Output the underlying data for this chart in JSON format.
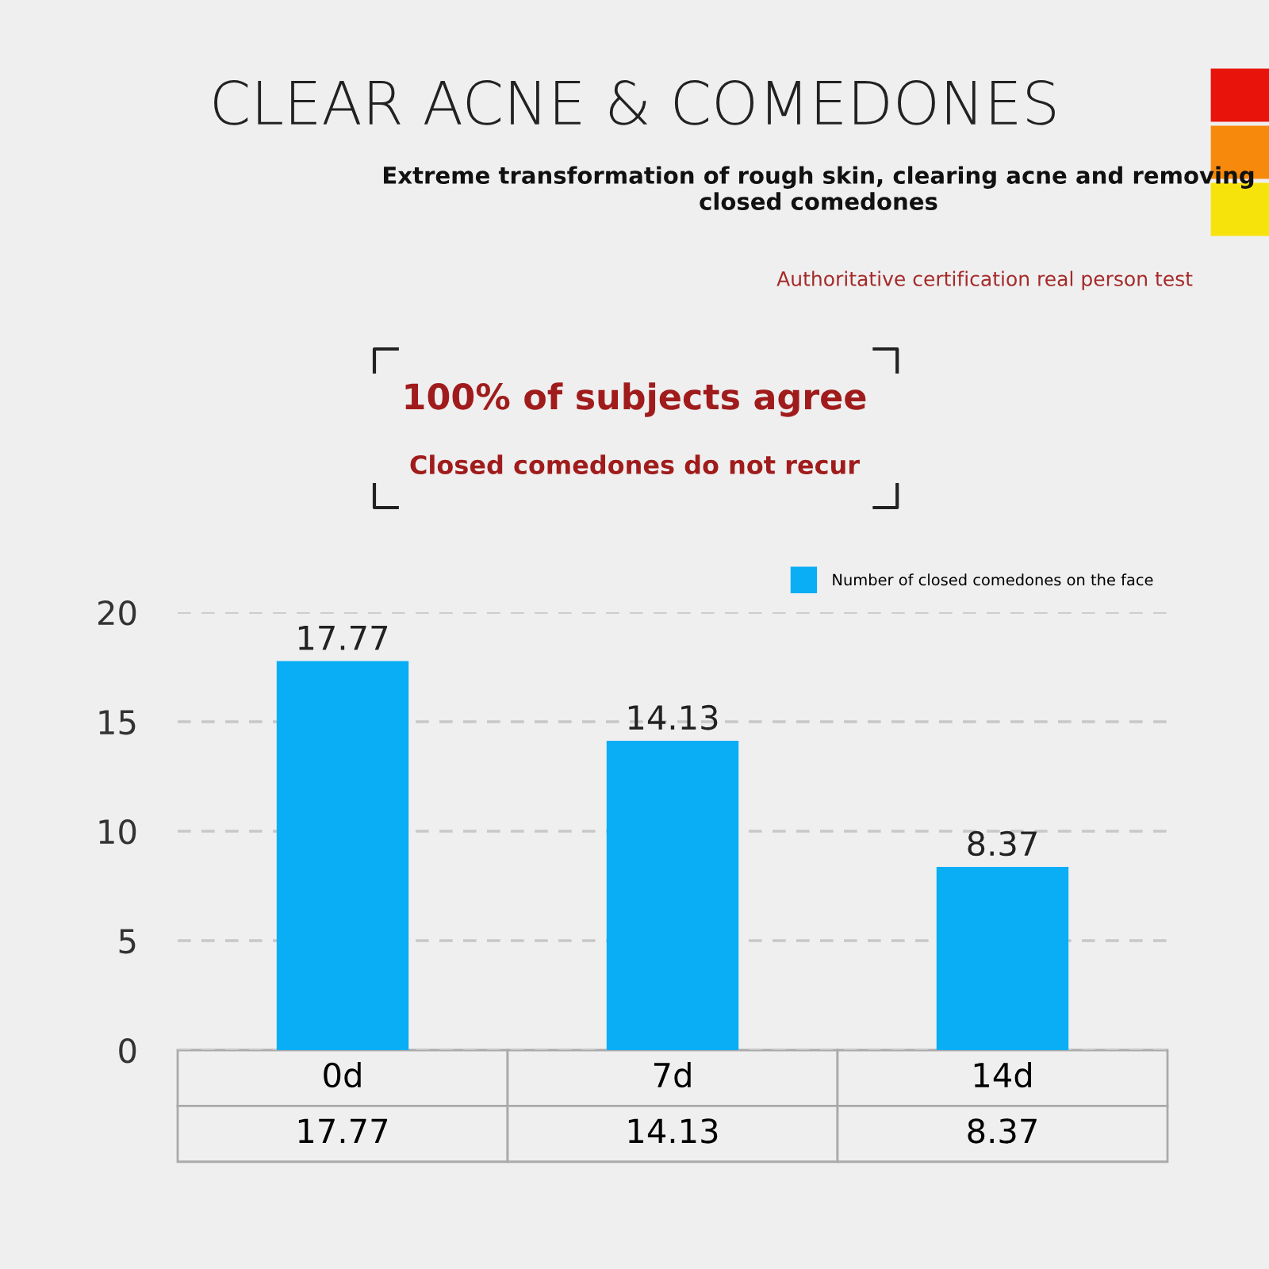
{
  "chart_data": {
    "type": "bar",
    "title": "CLEAR ACNE & COMEDONES",
    "subtitle": "Extreme transformation of rough skin, clearing acne and removing closed comedones",
    "annotations": [
      "Authoritative certification real person test",
      "100% of subjects agree",
      "Closed comedones do not recur",
      "17.77",
      "14.13",
      "8.37"
    ],
    "categories": [
      "0d",
      "7d",
      "14d"
    ],
    "series": [
      {
        "name": "Number of closed comedones on the face",
        "color": "#0aaef5",
        "values": [
          17.77,
          14.13,
          8.37
        ],
        "value_labels": [
          "17.77",
          "14.13",
          "8.37"
        ]
      }
    ],
    "ylim": [
      0,
      20
    ],
    "yticks": [
      0,
      5,
      10,
      15,
      20
    ],
    "grid": "y",
    "legend": "top right"
  }
}
